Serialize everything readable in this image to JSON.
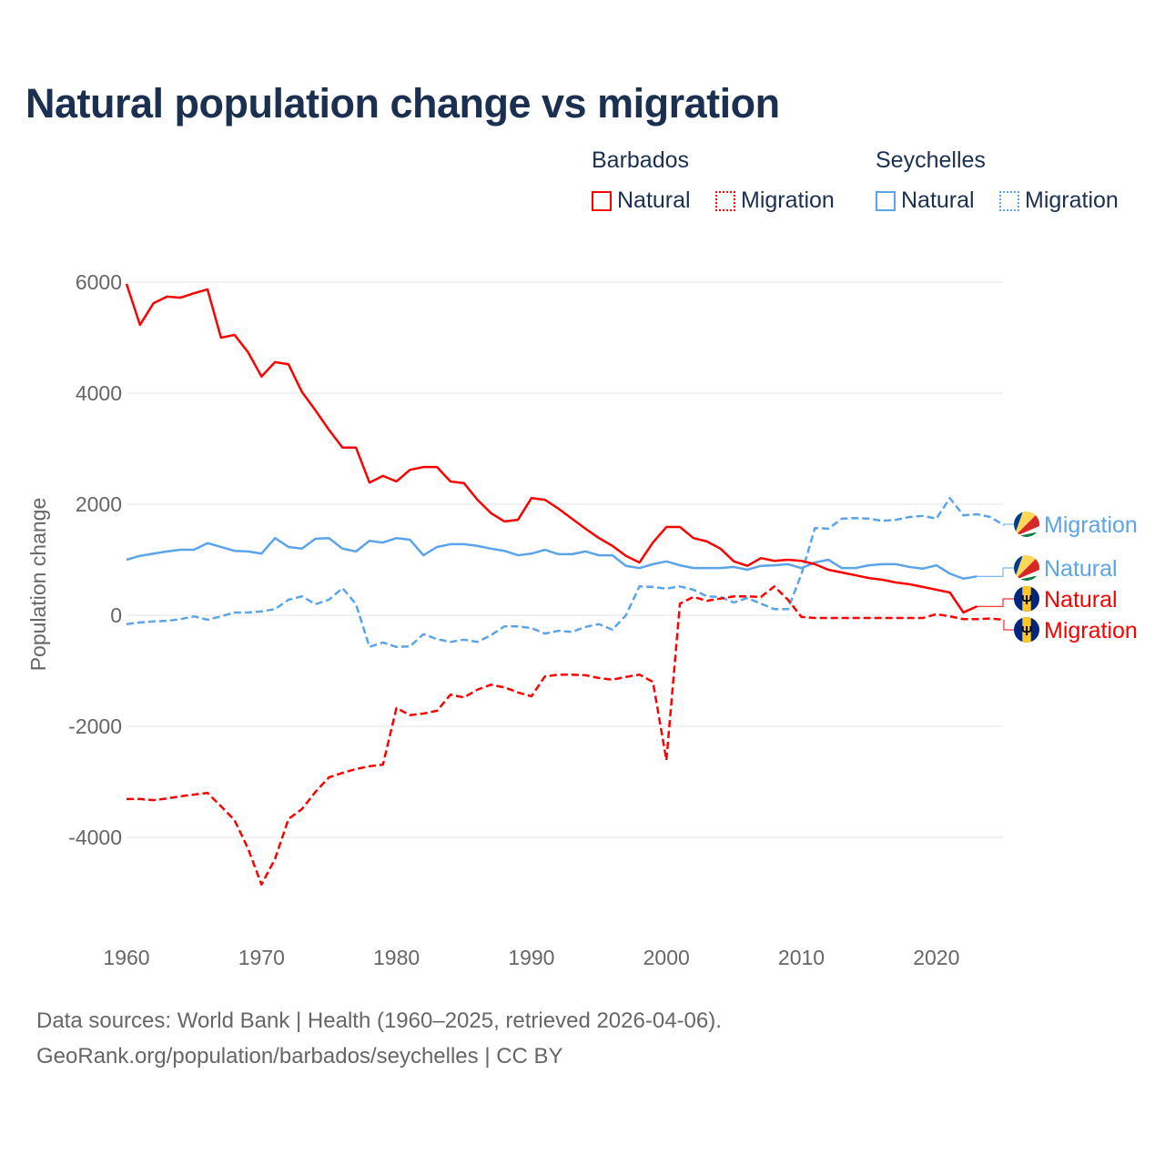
{
  "title": "Natural population change vs migration",
  "legend": {
    "groups": [
      {
        "name": "Barbados",
        "items": [
          {
            "label": "Natural",
            "style": "solid"
          },
          {
            "label": "Migration",
            "style": "dotted"
          }
        ],
        "color": "#ff0000"
      },
      {
        "name": "Seychelles",
        "items": [
          {
            "label": "Natural",
            "style": "solid"
          },
          {
            "label": "Migration",
            "style": "dotted"
          }
        ],
        "color": "#5ba4ea"
      }
    ]
  },
  "footer": {
    "line1": "Data sources: World Bank | Health (1960–2025, retrieved 2026-04-06).",
    "line2": "GeoRank.org/population/barbados/seychelles | CC BY"
  },
  "chart_data": {
    "type": "line",
    "title": "Natural population change vs migration",
    "xlabel": "",
    "ylabel": "Population change",
    "xlim": [
      1960,
      2025
    ],
    "ylim": [
      -5500,
      6000
    ],
    "x_ticks": [
      "1960",
      "1970",
      "1980",
      "1990",
      "2000",
      "2010",
      "2020"
    ],
    "y_ticks": [
      "6000",
      "4000",
      "2000",
      "0",
      "-2000",
      "-4000"
    ],
    "grid": true,
    "legend_position": "top-right",
    "series": [
      {
        "name": "Seychelles Migration",
        "label": "Migration",
        "country": "Seychelles",
        "color": "#5ba4ea",
        "dash": true,
        "start_year": 1960,
        "values": [
          -160,
          -130,
          -110,
          -100,
          -70,
          -20,
          -80,
          -20,
          50,
          50,
          70,
          110,
          280,
          340,
          200,
          280,
          490,
          200,
          -570,
          -490,
          -570,
          -560,
          -340,
          -430,
          -480,
          -440,
          -480,
          -360,
          -200,
          -200,
          -230,
          -330,
          -280,
          -300,
          -210,
          -160,
          -260,
          0,
          520,
          510,
          480,
          520,
          460,
          340,
          330,
          230,
          310,
          210,
          110,
          110,
          740,
          1570,
          1560,
          1740,
          1750,
          1740,
          1700,
          1720,
          1770,
          1790,
          1740,
          2110,
          1800,
          1820,
          1770,
          1620
        ]
      },
      {
        "name": "Seychelles Natural",
        "label": "Natural",
        "country": "Seychelles",
        "color": "#5ba4ea",
        "dash": false,
        "start_year": 1960,
        "values": [
          1000,
          1070,
          1110,
          1150,
          1180,
          1180,
          1300,
          1230,
          1160,
          1150,
          1110,
          1390,
          1230,
          1200,
          1380,
          1390,
          1200,
          1150,
          1340,
          1310,
          1390,
          1360,
          1080,
          1230,
          1280,
          1280,
          1250,
          1200,
          1160,
          1080,
          1110,
          1180,
          1100,
          1100,
          1150,
          1080,
          1080,
          890,
          850,
          920,
          970,
          900,
          850,
          850,
          850,
          870,
          820,
          890,
          900,
          920,
          850,
          950,
          1000,
          850,
          850,
          900,
          920,
          920,
          870,
          840,
          900,
          750,
          660,
          700
        ]
      },
      {
        "name": "Barbados Natural",
        "label": "Natural",
        "country": "Barbados",
        "color": "#ff0000",
        "dash": false,
        "start_year": 1960,
        "values": [
          5970,
          5230,
          5620,
          5740,
          5720,
          5800,
          5870,
          5000,
          5050,
          4740,
          4300,
          4560,
          4520,
          4020,
          3690,
          3340,
          3020,
          3020,
          2390,
          2510,
          2410,
          2620,
          2670,
          2670,
          2410,
          2380,
          2080,
          1840,
          1690,
          1720,
          2110,
          2080,
          1920,
          1740,
          1560,
          1390,
          1250,
          1070,
          950,
          1310,
          1590,
          1590,
          1390,
          1330,
          1200,
          970,
          890,
          1030,
          980,
          1000,
          980,
          920,
          820,
          770,
          720,
          670,
          640,
          590,
          560,
          510,
          460,
          410,
          50,
          160
        ]
      },
      {
        "name": "Barbados Migration",
        "label": "Migration",
        "country": "Barbados",
        "color": "#ff0000",
        "dash": true,
        "start_year": 1960,
        "values": [
          -3310,
          -3310,
          -3330,
          -3300,
          -3260,
          -3230,
          -3200,
          -3440,
          -3690,
          -4200,
          -4850,
          -4390,
          -3670,
          -3490,
          -3180,
          -2920,
          -2840,
          -2770,
          -2720,
          -2690,
          -1670,
          -1800,
          -1770,
          -1720,
          -1430,
          -1480,
          -1340,
          -1250,
          -1300,
          -1390,
          -1460,
          -1100,
          -1070,
          -1070,
          -1080,
          -1130,
          -1160,
          -1110,
          -1070,
          -1200,
          -2610,
          210,
          330,
          260,
          300,
          340,
          340,
          330,
          520,
          280,
          -30,
          -50,
          -50,
          -50,
          -50,
          -50,
          -50,
          -50,
          -50,
          -50,
          20,
          -20,
          -70,
          -70,
          -60,
          -80
        ]
      }
    ]
  }
}
